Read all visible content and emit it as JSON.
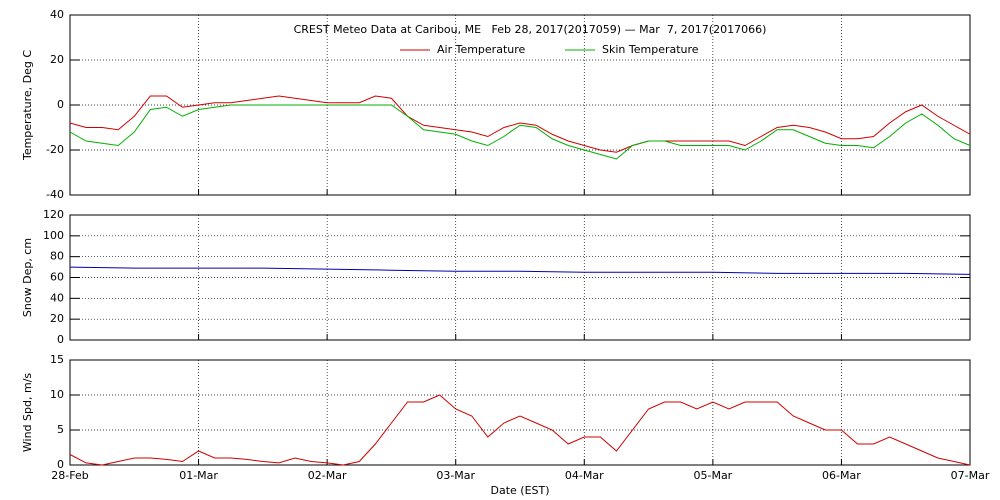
{
  "chart_data": [
    {
      "type": "line",
      "title": "CREST Meteo Data at Caribou, ME   Feb 28, 2017(2017059) — Mar  7, 2017(2017066)",
      "y_label": "Temperature, Deg C",
      "x": [
        0,
        0.125,
        0.25,
        0.375,
        0.5,
        0.625,
        0.75,
        0.875,
        1,
        1.125,
        1.25,
        1.375,
        1.5,
        1.625,
        1.75,
        1.875,
        2,
        2.125,
        2.25,
        2.375,
        2.5,
        2.625,
        2.75,
        2.875,
        3,
        3.125,
        3.25,
        3.375,
        3.5,
        3.625,
        3.75,
        3.875,
        4,
        4.125,
        4.25,
        4.375,
        4.5,
        4.625,
        4.75,
        4.875,
        5,
        5.125,
        5.25,
        5.375,
        5.5,
        5.625,
        5.75,
        5.875,
        6,
        6.125,
        6.25,
        6.375,
        6.5,
        6.625,
        6.75,
        6.875,
        7
      ],
      "series": [
        {
          "name": "Air Temperature",
          "color": "#d00000",
          "values": [
            -8,
            -10,
            -10,
            -11,
            -5,
            4,
            4,
            -1,
            0,
            1,
            1,
            2,
            3,
            4,
            3,
            2,
            1,
            1,
            1,
            4,
            3,
            -5,
            -9,
            -10,
            -11,
            -12,
            -14,
            -10,
            -8,
            -9,
            -13,
            -16,
            -18,
            -20,
            -21,
            -18,
            -16,
            -16,
            -16,
            -16,
            -16,
            -16,
            -18,
            -14,
            -10,
            -9,
            -10,
            -12,
            -15,
            -15,
            -14,
            -8,
            -3,
            0,
            -5,
            -9,
            -13
          ]
        },
        {
          "name": "Skin Temperature",
          "color": "#00b000",
          "values": [
            -12,
            -16,
            -17,
            -18,
            -12,
            -2,
            -1,
            -5,
            -2,
            -1,
            0,
            0,
            0,
            0,
            0,
            0,
            0,
            0,
            0,
            0,
            0,
            -5,
            -11,
            -12,
            -13,
            -16,
            -18,
            -14,
            -9,
            -10,
            -15,
            -18,
            -20,
            -22,
            -24,
            -18,
            -16,
            -16,
            -18,
            -18,
            -18,
            -18,
            -20,
            -16,
            -11,
            -11,
            -14,
            -17,
            -18,
            -18,
            -19,
            -14,
            -8,
            -4,
            -9,
            -15,
            -18
          ]
        }
      ],
      "xlim": [
        0,
        7
      ],
      "ylim": [
        -40,
        40
      ],
      "yticks": [
        -40,
        -20,
        0,
        20,
        40
      ],
      "grid": true
    },
    {
      "type": "line",
      "y_label": "Snow Dep, cm",
      "x": [
        0,
        0.5,
        1,
        1.5,
        2,
        2.5,
        3,
        3.5,
        4,
        4.5,
        5,
        5.5,
        6,
        6.5,
        7
      ],
      "series": [
        {
          "name": "Snow Depth",
          "color": "#0000b0",
          "values": [
            70,
            69,
            69,
            69,
            68,
            67,
            66,
            66,
            65,
            65,
            65,
            64,
            64,
            64,
            63
          ]
        }
      ],
      "xlim": [
        0,
        7
      ],
      "ylim": [
        0,
        120
      ],
      "yticks": [
        0,
        20,
        40,
        60,
        80,
        100,
        120
      ],
      "grid": true
    },
    {
      "type": "line",
      "y_label": "Wind Spd, m/s",
      "x_label": "Date (EST)",
      "x": [
        0,
        0.125,
        0.25,
        0.375,
        0.5,
        0.625,
        0.75,
        0.875,
        1,
        1.125,
        1.25,
        1.375,
        1.5,
        1.625,
        1.75,
        1.875,
        2,
        2.125,
        2.25,
        2.375,
        2.5,
        2.625,
        2.75,
        2.875,
        3,
        3.125,
        3.25,
        3.375,
        3.5,
        3.625,
        3.75,
        3.875,
        4,
        4.125,
        4.25,
        4.375,
        4.5,
        4.625,
        4.75,
        4.875,
        5,
        5.125,
        5.25,
        5.375,
        5.5,
        5.625,
        5.75,
        5.875,
        6,
        6.125,
        6.25,
        6.375,
        6.5,
        6.625,
        6.75,
        6.875,
        7
      ],
      "series": [
        {
          "name": "Wind Speed",
          "color": "#d00000",
          "values": [
            1.5,
            0.3,
            0,
            0.5,
            1,
            1,
            0.8,
            0.5,
            2,
            1,
            1,
            0.8,
            0.5,
            0.3,
            1,
            0.5,
            0.3,
            0,
            0.5,
            3,
            6,
            9,
            9,
            10,
            8,
            7,
            4,
            6,
            7,
            6,
            5,
            3,
            4,
            4,
            2,
            5,
            8,
            9,
            9,
            8,
            9,
            8,
            9,
            9,
            9,
            7,
            6,
            5,
            5,
            3,
            3,
            4,
            3,
            2,
            1,
            0.5,
            0
          ]
        }
      ],
      "xlim": [
        0,
        7
      ],
      "xticks": [
        {
          "value": 0,
          "label": "28-Feb"
        },
        {
          "value": 1,
          "label": "01-Mar"
        },
        {
          "value": 2,
          "label": "02-Mar"
        },
        {
          "value": 3,
          "label": "03-Mar"
        },
        {
          "value": 4,
          "label": "04-Mar"
        },
        {
          "value": 5,
          "label": "05-Mar"
        },
        {
          "value": 6,
          "label": "06-Mar"
        },
        {
          "value": 7,
          "label": "07-Mar"
        }
      ],
      "ylim": [
        0,
        15
      ],
      "yticks": [
        0,
        5,
        10,
        15
      ],
      "grid": true
    }
  ]
}
